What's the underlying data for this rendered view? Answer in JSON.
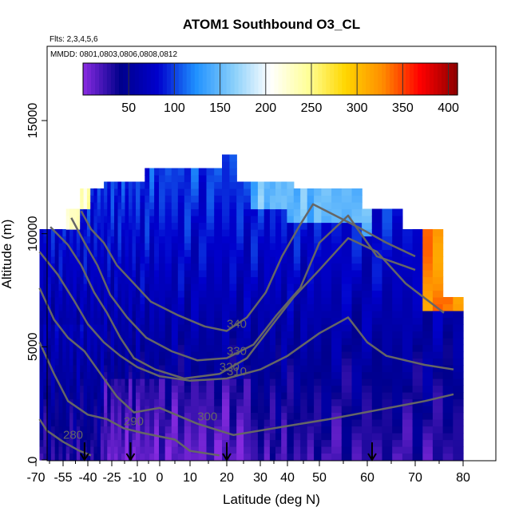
{
  "chart_data": {
    "type": "heatmap",
    "title": "ATOM1 Southbound O3_CL",
    "annotations": [
      "Flts: 2,3,4,5,6",
      "MMDD: 0801,0803,0806,0808,0812"
    ],
    "xlabel": "Latitude (deg N)",
    "ylabel": "Altitude (m)",
    "xlim": [
      -70,
      80
    ],
    "ylim": [
      0,
      17000
    ],
    "xticks": [
      "-70",
      "-55",
      "-40",
      "-25",
      "-10",
      "0",
      "10",
      "20",
      "30",
      "40",
      "50",
      "60",
      "70",
      "80"
    ],
    "yticks": [
      0,
      5000,
      10000,
      15000
    ],
    "ytick_labels": [
      "0",
      "5000",
      "10000",
      "15000"
    ],
    "colorbar": {
      "ticks": [
        50,
        100,
        150,
        200,
        250,
        300,
        350,
        400
      ],
      "labels": [
        "50",
        "100",
        "150",
        "200",
        "250",
        "300",
        "350",
        "400"
      ],
      "range": [
        0,
        410
      ],
      "colors": [
        "#8a2be2",
        "#00008b",
        "#0000cd",
        "#1e90ff",
        "#87cefa",
        "#ffffff",
        "#ffff99",
        "#ffd700",
        "#ff8c00",
        "#ff0000",
        "#8b0000"
      ]
    },
    "flight_markers_lat": [
      -42,
      -14,
      20,
      61
    ],
    "potential_temperature_contours": [
      {
        "level": "280",
        "points": [
          [
            -68,
            1800
          ],
          [
            -64,
            1300
          ],
          [
            -55,
            800
          ],
          [
            -45,
            400
          ],
          [
            -38,
            200
          ]
        ]
      },
      {
        "level": "290",
        "points": [
          [
            -68,
            5200
          ],
          [
            -60,
            3800
          ],
          [
            -52,
            2600
          ],
          [
            -40,
            2000
          ],
          [
            -28,
            1800
          ],
          [
            -18,
            1400
          ],
          [
            -8,
            1200
          ],
          [
            5,
            900
          ],
          [
            10,
            400
          ],
          [
            18,
            200
          ]
        ]
      },
      {
        "level": "300",
        "points": [
          [
            -68,
            7600
          ],
          [
            -60,
            6200
          ],
          [
            -52,
            5400
          ],
          [
            -42,
            4800
          ],
          [
            -32,
            3800
          ],
          [
            -22,
            2800
          ],
          [
            -12,
            2100
          ],
          [
            0,
            2300
          ],
          [
            12,
            1600
          ],
          [
            22,
            1100
          ],
          [
            30,
            1300
          ],
          [
            40,
            1500
          ],
          [
            52,
            1800
          ],
          [
            62,
            2200
          ],
          [
            72,
            2600
          ],
          [
            78,
            2900
          ]
        ]
      },
      {
        "level": "310",
        "points": [
          [
            -68,
            9200
          ],
          [
            -58,
            8200
          ],
          [
            -48,
            7000
          ],
          [
            -40,
            6000
          ],
          [
            -30,
            5200
          ],
          [
            -20,
            4600
          ],
          [
            -10,
            4100
          ],
          [
            0,
            3700
          ],
          [
            10,
            3500
          ],
          [
            20,
            3600
          ],
          [
            30,
            4000
          ],
          [
            40,
            4600
          ],
          [
            50,
            5600
          ],
          [
            56,
            6300
          ],
          [
            60,
            5200
          ],
          [
            64,
            4600
          ],
          [
            72,
            4200
          ],
          [
            78,
            4000
          ]
        ]
      },
      {
        "level": "320",
        "points": [
          [
            -62,
            10300
          ],
          [
            -52,
            9500
          ],
          [
            -44,
            8600
          ],
          [
            -36,
            7400
          ],
          [
            -28,
            6500
          ],
          [
            -20,
            5400
          ],
          [
            -12,
            4500
          ],
          [
            -2,
            4000
          ],
          [
            8,
            3600
          ],
          [
            18,
            3800
          ],
          [
            26,
            4500
          ],
          [
            34,
            5900
          ],
          [
            42,
            7200
          ],
          [
            50,
            8400
          ],
          [
            56,
            9800
          ],
          [
            62,
            9200
          ],
          [
            68,
            7800
          ],
          [
            76,
            6500
          ]
        ]
      },
      {
        "level": "330",
        "points": [
          [
            -50,
            10700
          ],
          [
            -42,
            9600
          ],
          [
            -34,
            8600
          ],
          [
            -26,
            7300
          ],
          [
            -16,
            6300
          ],
          [
            -6,
            5400
          ],
          [
            4,
            4800
          ],
          [
            12,
            4400
          ],
          [
            20,
            4500
          ],
          [
            28,
            5100
          ],
          [
            36,
            6400
          ],
          [
            44,
            7600
          ],
          [
            50,
            9600
          ],
          [
            56,
            10800
          ],
          [
            62,
            9000
          ],
          [
            70,
            8400
          ]
        ]
      },
      {
        "level": "340",
        "points": [
          [
            -44,
            11000
          ],
          [
            -38,
            10200
          ],
          [
            -30,
            9600
          ],
          [
            -22,
            8600
          ],
          [
            -12,
            7800
          ],
          [
            -4,
            7000
          ],
          [
            6,
            6400
          ],
          [
            14,
            5900
          ],
          [
            20,
            5700
          ],
          [
            26,
            6300
          ],
          [
            32,
            7400
          ],
          [
            38,
            9000
          ],
          [
            44,
            10400
          ],
          [
            48,
            11300
          ],
          [
            58,
            10300
          ],
          [
            64,
            9600
          ],
          [
            70,
            9000
          ]
        ]
      }
    ]
  }
}
